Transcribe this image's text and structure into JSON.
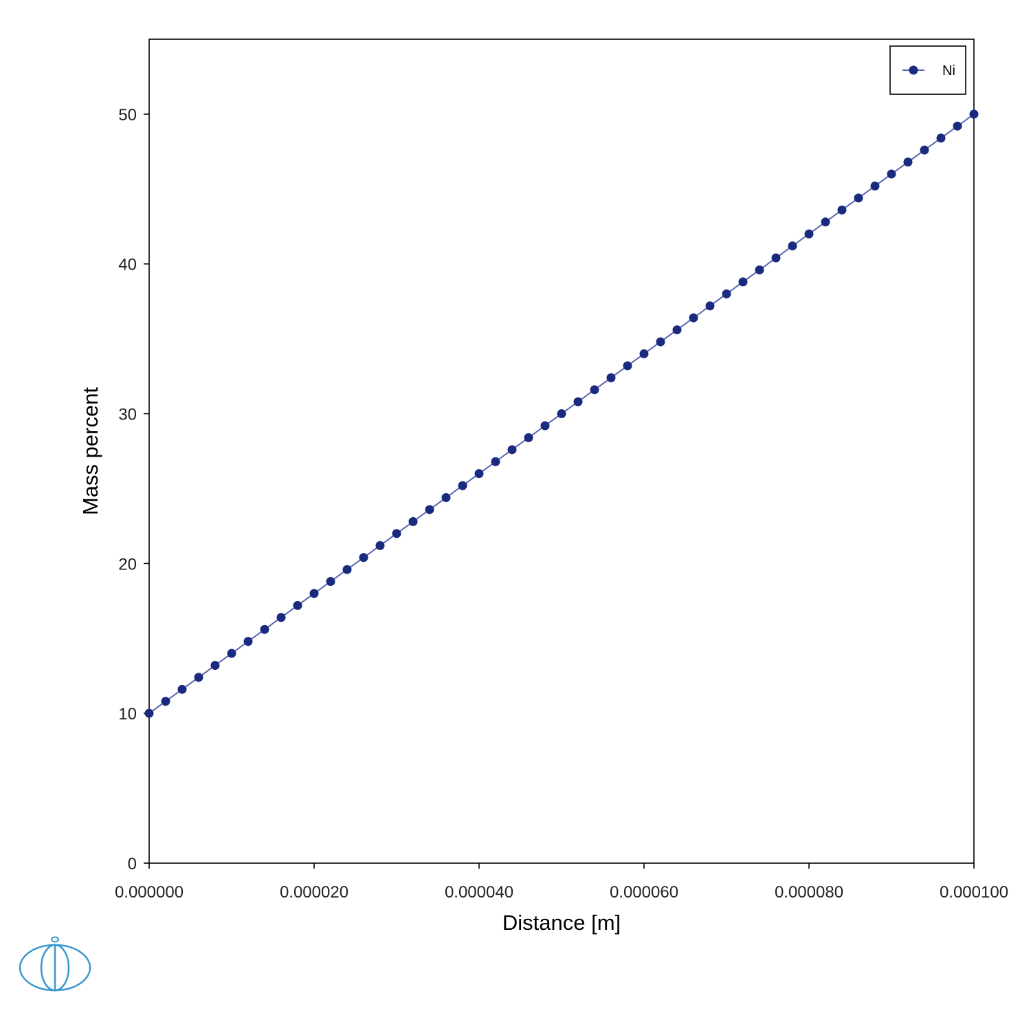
{
  "chart_data": {
    "type": "line",
    "title": "",
    "xlabel": "Distance [m]",
    "ylabel": "Mass percent",
    "xlim": [
      0,
      0.0001
    ],
    "ylim": [
      0,
      55
    ],
    "x_ticks": [
      0,
      2e-05,
      4e-05,
      6e-05,
      8e-05,
      0.0001
    ],
    "x_tick_labels": [
      "0.000000",
      "0.000020",
      "0.000040",
      "0.000060",
      "0.000080",
      "0.000100"
    ],
    "y_ticks": [
      0,
      10,
      20,
      30,
      40,
      50
    ],
    "y_tick_labels": [
      "0",
      "10",
      "20",
      "30",
      "40",
      "50"
    ],
    "grid": false,
    "legend_position": "top-right",
    "series": [
      {
        "name": "Ni",
        "color": "#1a2a7e",
        "marker": "circle",
        "x": [
          0,
          2e-06,
          4e-06,
          6e-06,
          8e-06,
          1e-05,
          1.2e-05,
          1.4e-05,
          1.6e-05,
          1.8e-05,
          2e-05,
          2.2e-05,
          2.4e-05,
          2.6e-05,
          2.8e-05,
          3e-05,
          3.2e-05,
          3.4e-05,
          3.6e-05,
          3.8e-05,
          4e-05,
          4.2e-05,
          4.4e-05,
          4.6e-05,
          4.8e-05,
          5e-05,
          5.2e-05,
          5.4e-05,
          5.6e-05,
          5.8e-05,
          6e-05,
          6.2e-05,
          6.4e-05,
          6.6e-05,
          6.8e-05,
          7e-05,
          7.2e-05,
          7.4e-05,
          7.6e-05,
          7.8e-05,
          8e-05,
          8.2e-05,
          8.4e-05,
          8.6e-05,
          8.8e-05,
          9e-05,
          9.2e-05,
          9.4e-05,
          9.6e-05,
          9.8e-05,
          0.0001
        ],
        "y": [
          10,
          10.8,
          11.6,
          12.4,
          13.2,
          14,
          14.8,
          15.6,
          16.4,
          17.2,
          18,
          18.8,
          19.6,
          20.4,
          21.2,
          22,
          22.8,
          23.6,
          24.4,
          25.2,
          26,
          26.8,
          27.6,
          28.4,
          29.2,
          30,
          30.8,
          31.6,
          32.4,
          33.2,
          34,
          34.8,
          35.6,
          36.4,
          37.2,
          38,
          38.8,
          39.6,
          40.4,
          41.2,
          42,
          42.8,
          43.6,
          44.4,
          45.2,
          46,
          46.8,
          47.6,
          48.4,
          49.2,
          50
        ]
      }
    ]
  },
  "logo": {
    "name": "thermo-calc-logo"
  }
}
